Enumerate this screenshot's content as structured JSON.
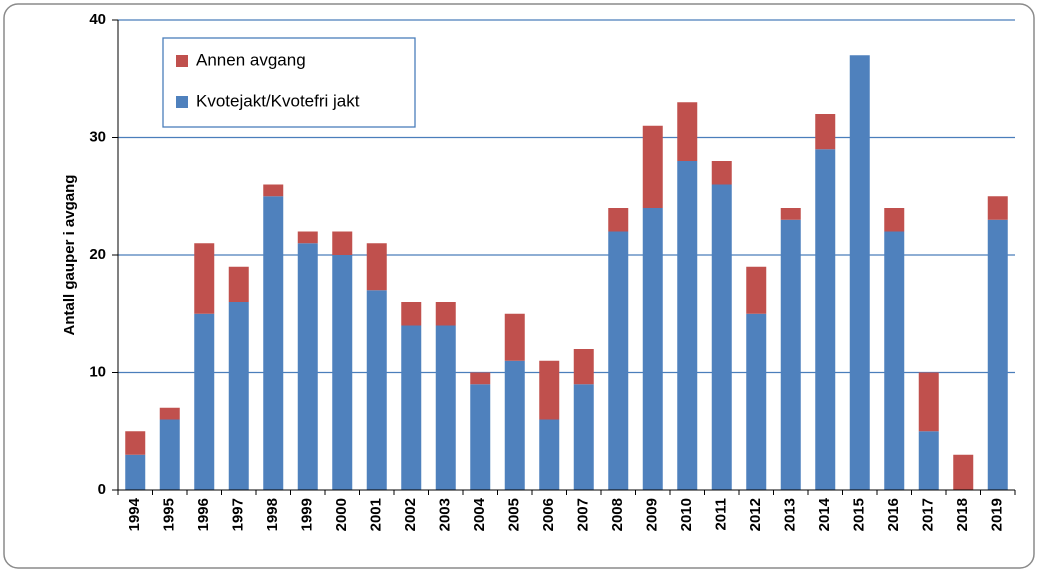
{
  "chart_data": {
    "type": "stacked_bar",
    "y_label": "Antall gauper i avgang",
    "categories": [
      "1994",
      "1995",
      "1996",
      "1997",
      "1998",
      "1999",
      "2000",
      "2001",
      "2002",
      "2003",
      "2004",
      "2005",
      "2006",
      "2007",
      "2008",
      "2009",
      "2010",
      "2011",
      "2012",
      "2013",
      "2014",
      "2015",
      "2016",
      "2017",
      "2018",
      "2019"
    ],
    "series": [
      {
        "name": "Kvotejakt/Kvotefri jakt",
        "color": "#4f81bd",
        "values": [
          3,
          6,
          15,
          16,
          25,
          21,
          20,
          17,
          14,
          14,
          9,
          11,
          6,
          9,
          22,
          24,
          28,
          26,
          15,
          23,
          29,
          37,
          22,
          5,
          0,
          23
        ]
      },
      {
        "name": "Annen avgang",
        "color": "#c0504d",
        "values": [
          2,
          1,
          6,
          3,
          1,
          1,
          2,
          4,
          2,
          2,
          1,
          4,
          5,
          3,
          2,
          7,
          5,
          2,
          4,
          1,
          3,
          0,
          2,
          5,
          3,
          2
        ]
      }
    ],
    "ylim": [
      0,
      40
    ],
    "yticks": [
      0,
      10,
      20,
      30,
      40
    ],
    "grid": true,
    "legend": "top-left"
  }
}
